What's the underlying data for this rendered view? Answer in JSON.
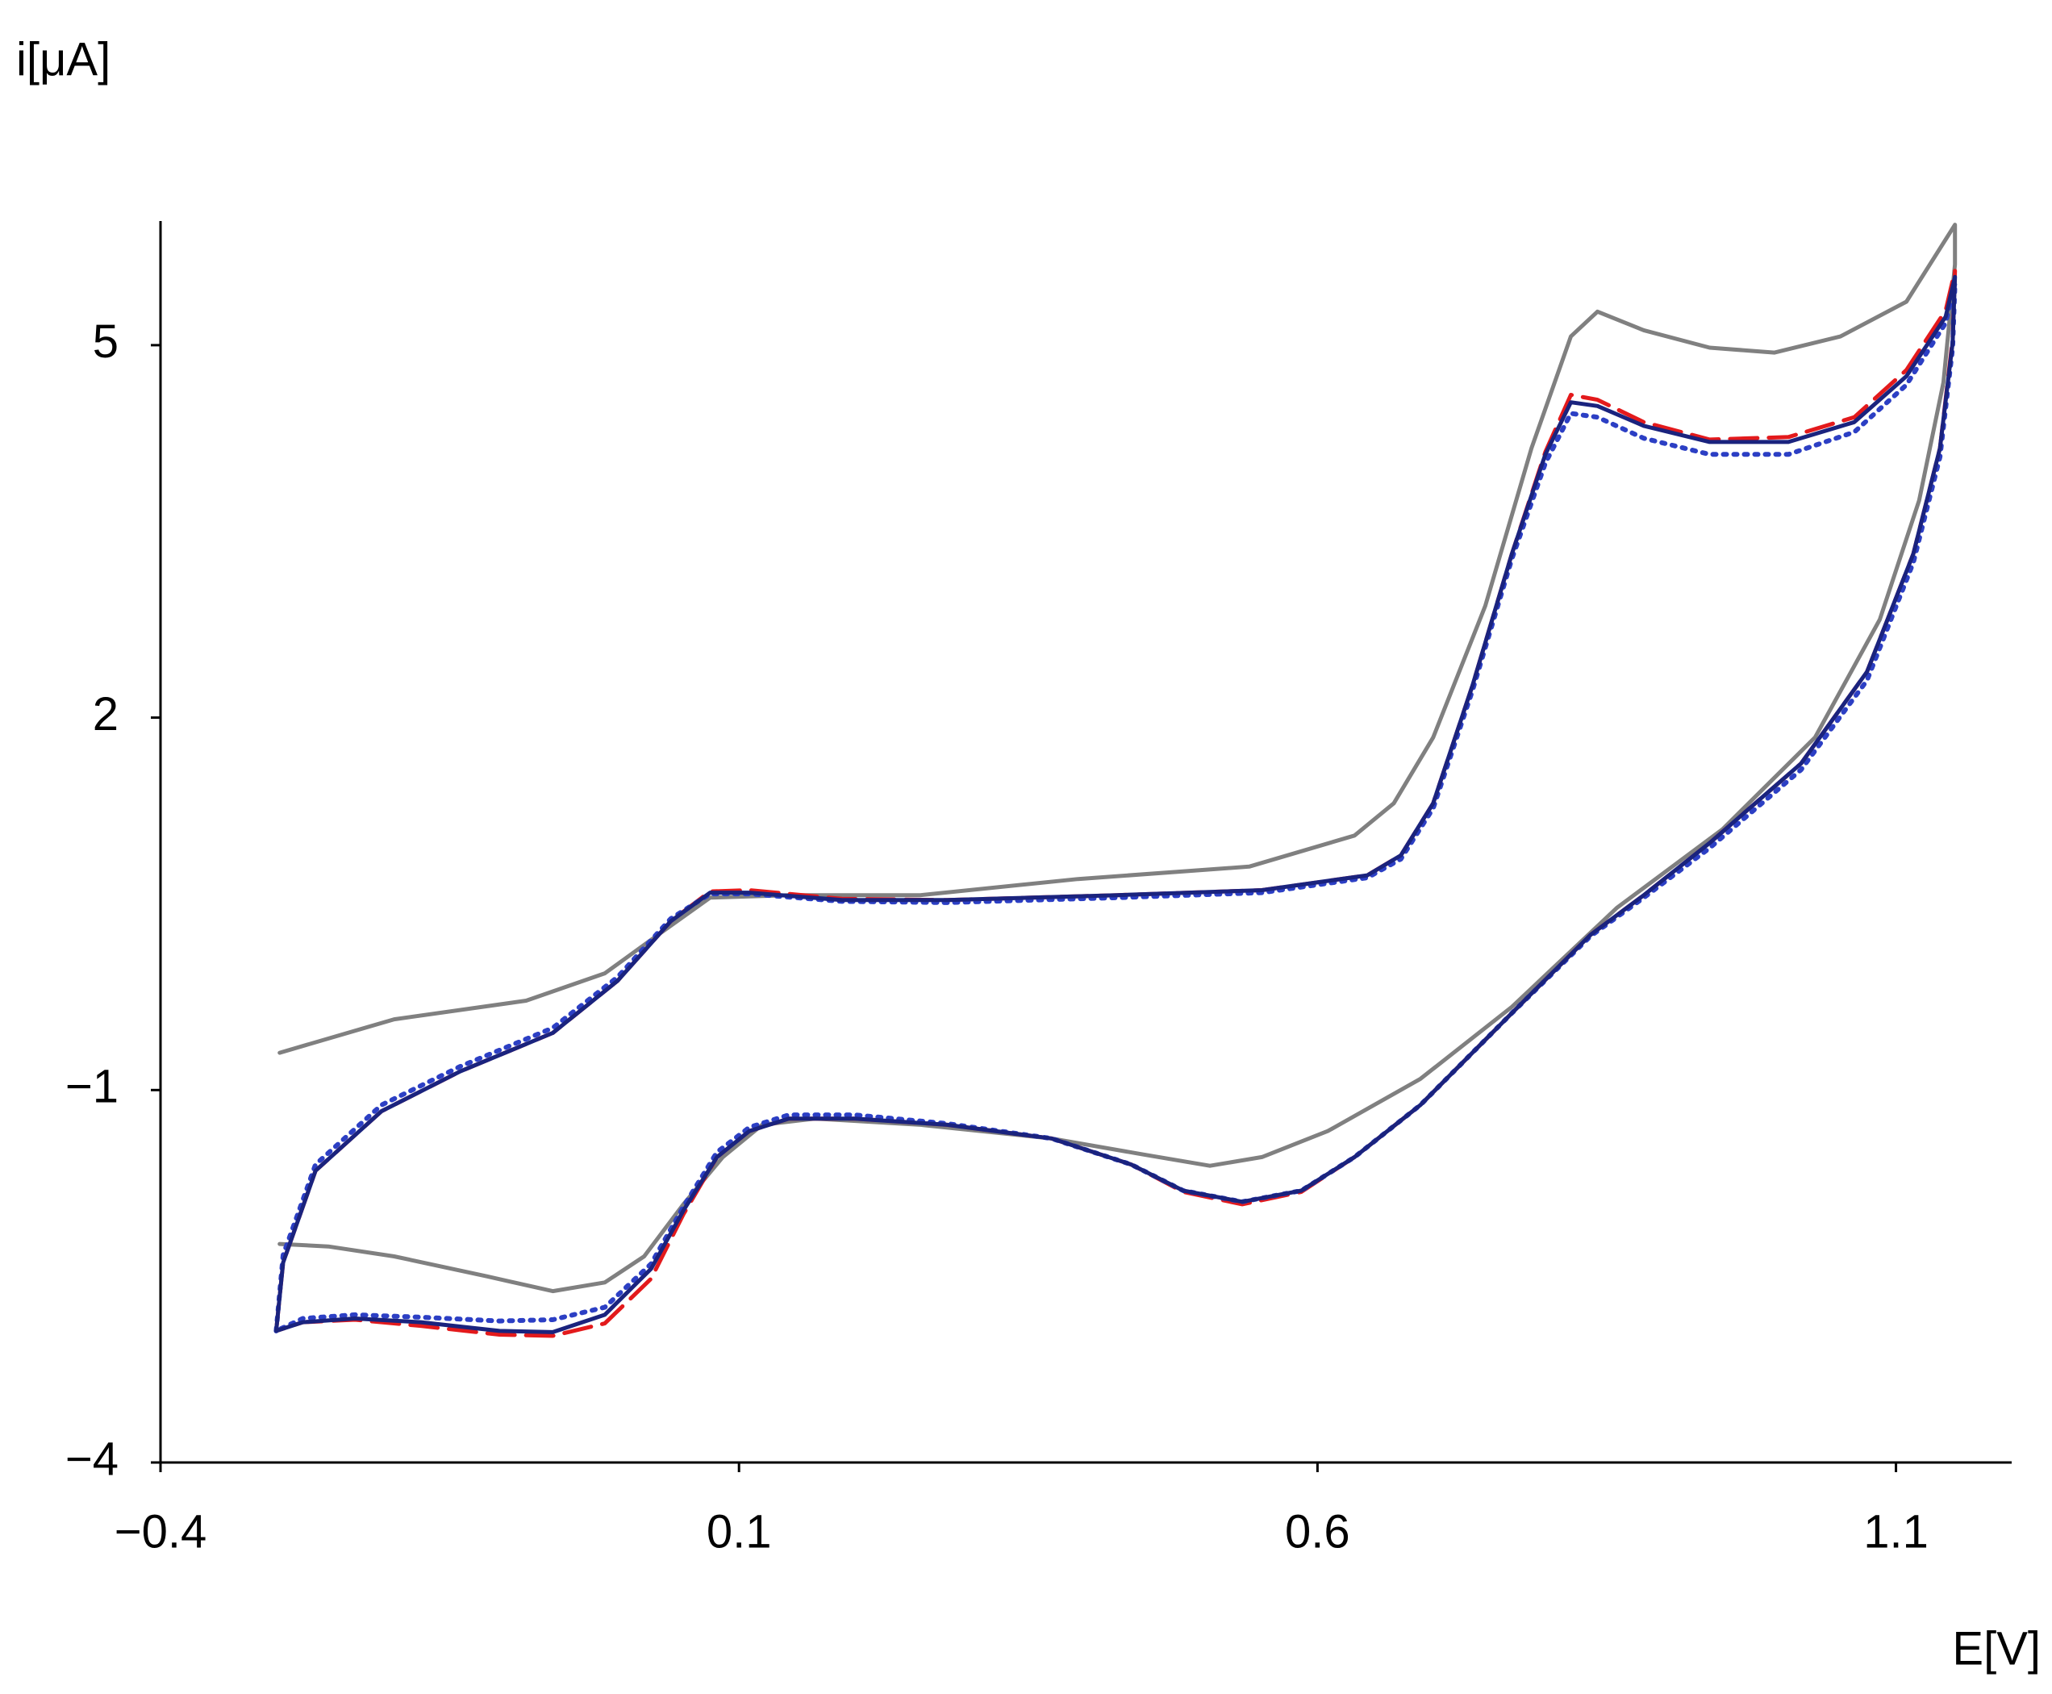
{
  "chart_data": {
    "type": "line",
    "x_label": "E[V]",
    "y_label": "i[μA]",
    "xlim": [
      -0.4,
      1.2
    ],
    "ylim": [
      -4,
      6
    ],
    "xticks": [
      {
        "value": -0.4,
        "label": "−0.4"
      },
      0.1,
      0.6,
      1.1
    ],
    "yticks": [
      {
        "value": -4,
        "label": "−4"
      },
      {
        "value": -1,
        "label": "−1"
      },
      2,
      5
    ],
    "grid": false,
    "series": [
      {
        "color": "#808080",
        "linestyle": "solid",
        "x": [
          -0.297,
          -0.198,
          -0.084,
          -0.016,
          0.03,
          0.075,
          0.143,
          0.257,
          0.393,
          0.541,
          0.632,
          0.666,
          0.7,
          0.745,
          0.785,
          0.819,
          0.842,
          0.882,
          0.939,
          0.995,
          1.052,
          1.109,
          1.151,
          1.151,
          1.141,
          1.12,
          1.086,
          1.03,
          0.95,
          0.859,
          0.768,
          0.689,
          0.609,
          0.552,
          0.507,
          0.45,
          0.37,
          0.257,
          0.166,
          0.12,
          0.086,
          0.052,
          0.018,
          -0.016,
          -0.061,
          -0.118,
          -0.198,
          -0.255,
          -0.297
        ],
        "values": [
          -0.7,
          -0.43,
          -0.28,
          -0.06,
          0.25,
          0.55,
          0.57,
          0.57,
          0.7,
          0.8,
          1.05,
          1.31,
          1.84,
          2.9,
          4.17,
          5.07,
          5.27,
          5.12,
          4.98,
          4.94,
          5.07,
          5.35,
          5.97,
          5.65,
          4.7,
          3.75,
          2.79,
          1.84,
          1.1,
          0.47,
          -0.33,
          -0.91,
          -1.33,
          -1.54,
          -1.61,
          -1.52,
          -1.39,
          -1.28,
          -1.23,
          -1.28,
          -1.54,
          -1.92,
          -2.34,
          -2.55,
          -2.62,
          -2.5,
          -2.34,
          -2.26,
          -2.24
        ]
      },
      {
        "color": "#e31a1c",
        "linestyle": "dashed",
        "x": [
          -0.3,
          -0.294,
          -0.266,
          -0.209,
          -0.141,
          -0.061,
          -0.005,
          0.041,
          0.075,
          0.109,
          0.189,
          0.28,
          0.427,
          0.552,
          0.643,
          0.672,
          0.7,
          0.734,
          0.768,
          0.797,
          0.819,
          0.842,
          0.882,
          0.939,
          1.007,
          1.064,
          1.109,
          1.143,
          1.151,
          1.149,
          1.138,
          1.115,
          1.075,
          1.018,
          0.939,
          0.882,
          0.836,
          0.768,
          0.689,
          0.632,
          0.586,
          0.535,
          0.484,
          0.439,
          0.37,
          0.28,
          0.2,
          0.143,
          0.109,
          0.081,
          0.052,
          0.024,
          -0.016,
          -0.061,
          -0.107,
          -0.175,
          -0.232,
          -0.277,
          -0.3
        ],
        "values": [
          -2.94,
          -2.39,
          -1.65,
          -1.17,
          -0.85,
          -0.54,
          -0.12,
          0.36,
          0.6,
          0.61,
          0.54,
          0.53,
          0.57,
          0.61,
          0.73,
          0.89,
          1.31,
          2.26,
          3.32,
          4.14,
          4.6,
          4.56,
          4.38,
          4.24,
          4.26,
          4.42,
          4.8,
          5.28,
          5.6,
          5.05,
          4.17,
          3.32,
          2.37,
          1.63,
          0.99,
          0.57,
          0.25,
          -0.38,
          -1.12,
          -1.54,
          -1.82,
          -1.92,
          -1.82,
          -1.6,
          -1.39,
          -1.28,
          -1.23,
          -1.23,
          -1.33,
          -1.54,
          -2.0,
          -2.52,
          -2.88,
          -2.98,
          -2.97,
          -2.9,
          -2.85,
          -2.87,
          -2.94
        ]
      },
      {
        "color": "#2c3fc4",
        "linestyle": "dotted",
        "x": [
          -0.3,
          -0.294,
          -0.266,
          -0.209,
          -0.141,
          -0.061,
          -0.005,
          0.041,
          0.075,
          0.109,
          0.189,
          0.28,
          0.427,
          0.552,
          0.643,
          0.672,
          0.7,
          0.734,
          0.768,
          0.797,
          0.819,
          0.842,
          0.882,
          0.939,
          1.007,
          1.064,
          1.109,
          1.143,
          1.151,
          1.149,
          1.138,
          1.115,
          1.075,
          1.018,
          0.939,
          0.882,
          0.836,
          0.768,
          0.689,
          0.632,
          0.586,
          0.535,
          0.484,
          0.439,
          0.37,
          0.28,
          0.2,
          0.143,
          0.109,
          0.081,
          0.052,
          0.024,
          -0.016,
          -0.061,
          -0.107,
          -0.175,
          -0.232,
          -0.277,
          -0.3
        ],
        "values": [
          -2.94,
          -2.33,
          -1.6,
          -1.12,
          -0.81,
          -0.5,
          -0.09,
          0.38,
          0.58,
          0.58,
          0.52,
          0.51,
          0.55,
          0.59,
          0.71,
          0.86,
          1.27,
          2.22,
          3.28,
          4.05,
          4.45,
          4.42,
          4.25,
          4.12,
          4.12,
          4.3,
          4.68,
          5.18,
          5.5,
          4.98,
          4.1,
          3.25,
          2.3,
          1.58,
          0.95,
          0.55,
          0.24,
          -0.38,
          -1.12,
          -1.54,
          -1.81,
          -1.9,
          -1.81,
          -1.6,
          -1.39,
          -1.27,
          -1.2,
          -1.2,
          -1.3,
          -1.5,
          -1.94,
          -2.4,
          -2.75,
          -2.85,
          -2.86,
          -2.83,
          -2.81,
          -2.84,
          -2.94
        ]
      },
      {
        "color": "#1a237e",
        "linestyle": "solid",
        "x": [
          -0.3,
          -0.294,
          -0.266,
          -0.209,
          -0.141,
          -0.061,
          -0.005,
          0.041,
          0.075,
          0.109,
          0.189,
          0.28,
          0.427,
          0.552,
          0.643,
          0.672,
          0.7,
          0.734,
          0.768,
          0.797,
          0.819,
          0.842,
          0.882,
          0.939,
          1.007,
          1.064,
          1.109,
          1.143,
          1.151,
          1.149,
          1.138,
          1.115,
          1.075,
          1.018,
          0.939,
          0.882,
          0.836,
          0.768,
          0.689,
          0.632,
          0.586,
          0.535,
          0.484,
          0.439,
          0.37,
          0.28,
          0.2,
          0.143,
          0.109,
          0.081,
          0.052,
          0.024,
          -0.016,
          -0.061,
          -0.107,
          -0.175,
          -0.232,
          -0.277,
          -0.3
        ],
        "values": [
          -2.94,
          -2.39,
          -1.65,
          -1.17,
          -0.85,
          -0.54,
          -0.12,
          0.36,
          0.59,
          0.59,
          0.53,
          0.53,
          0.57,
          0.61,
          0.73,
          0.89,
          1.31,
          2.26,
          3.32,
          4.12,
          4.54,
          4.51,
          4.35,
          4.22,
          4.22,
          4.38,
          4.75,
          5.23,
          5.55,
          5.02,
          4.17,
          3.32,
          2.37,
          1.63,
          0.99,
          0.57,
          0.25,
          -0.38,
          -1.12,
          -1.54,
          -1.81,
          -1.9,
          -1.81,
          -1.6,
          -1.39,
          -1.28,
          -1.23,
          -1.23,
          -1.33,
          -1.54,
          -1.97,
          -2.44,
          -2.81,
          -2.95,
          -2.94,
          -2.87,
          -2.84,
          -2.87,
          -2.94
        ]
      }
    ]
  }
}
